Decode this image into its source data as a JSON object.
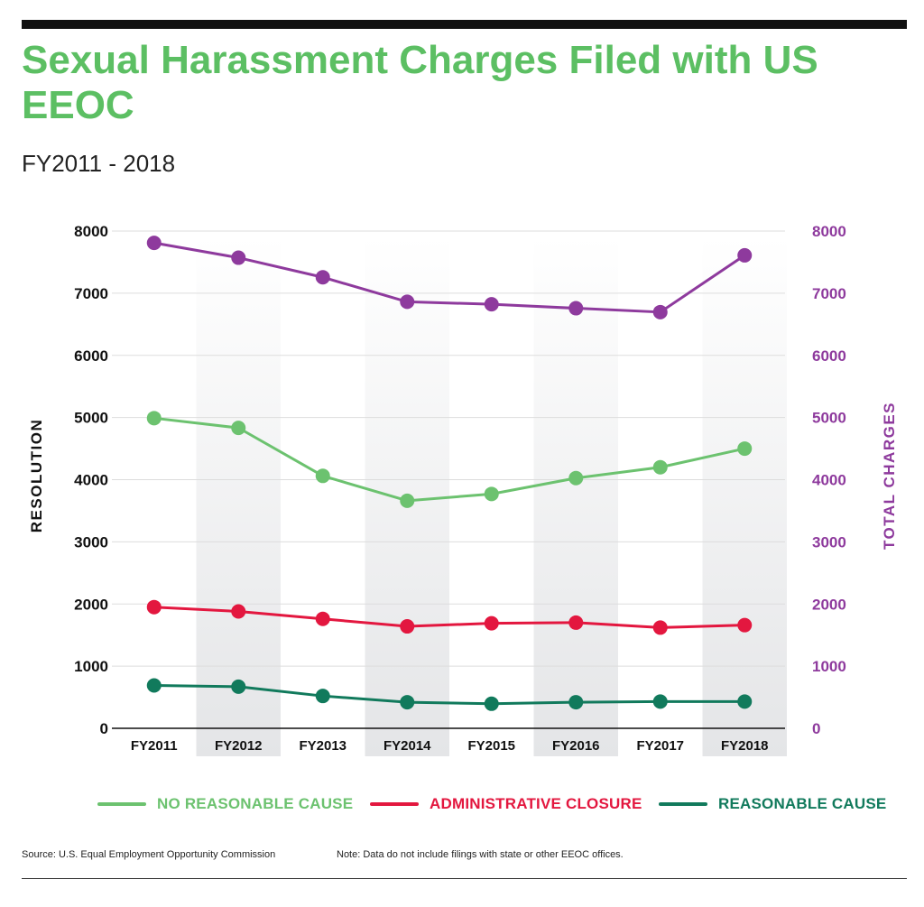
{
  "header": {
    "title": "Sexual Harassment Charges Filed with US EEOC",
    "subtitle": "FY2011 - 2018"
  },
  "footer": {
    "source": "Source: U.S. Equal Employment Opportunity Commission",
    "note": "Note: Data do not include filings with state or other EEOC offices."
  },
  "chart_data": {
    "type": "line",
    "title": "Sexual Harassment Charges Filed with US EEOC",
    "subtitle": "FY2011 - 2018",
    "categories": [
      "FY2011",
      "FY2012",
      "FY2013",
      "FY2014",
      "FY2015",
      "FY2016",
      "FY2017",
      "FY2018"
    ],
    "ylabel": "RESOLUTION",
    "y2label": "TOTAL CHARGES",
    "ylim": [
      0,
      8000
    ],
    "y2lim": [
      0,
      8000
    ],
    "yticks": [
      "0",
      "1000",
      "2000",
      "3000",
      "4000",
      "5000",
      "6000",
      "7000",
      "8000"
    ],
    "grid": true,
    "alternating_column_shading": true,
    "legend_position": "bottom",
    "series": [
      {
        "name": "TOTAL CHARGES",
        "axis": "right",
        "color": "#8e3a9d",
        "values": [
          7809,
          7571,
          7256,
          6862,
          6822,
          6758,
          6696,
          7609
        ],
        "in_legend": false
      },
      {
        "name": "NO REASONABLE CAUSE",
        "axis": "left",
        "color": "#6cc26f",
        "values": [
          4990,
          4833,
          4061,
          3661,
          3770,
          4025,
          4200,
          4500
        ],
        "in_legend": true
      },
      {
        "name": "ADMINISTRATIVE CLOSURE",
        "axis": "left",
        "color": "#e3173f",
        "values": [
          1950,
          1880,
          1760,
          1640,
          1690,
          1700,
          1620,
          1660
        ],
        "in_legend": true
      },
      {
        "name": "REASONABLE CAUSE",
        "axis": "left",
        "color": "#117a5c",
        "values": [
          690,
          670,
          520,
          420,
          395,
          420,
          430,
          430
        ],
        "in_legend": true
      }
    ]
  }
}
